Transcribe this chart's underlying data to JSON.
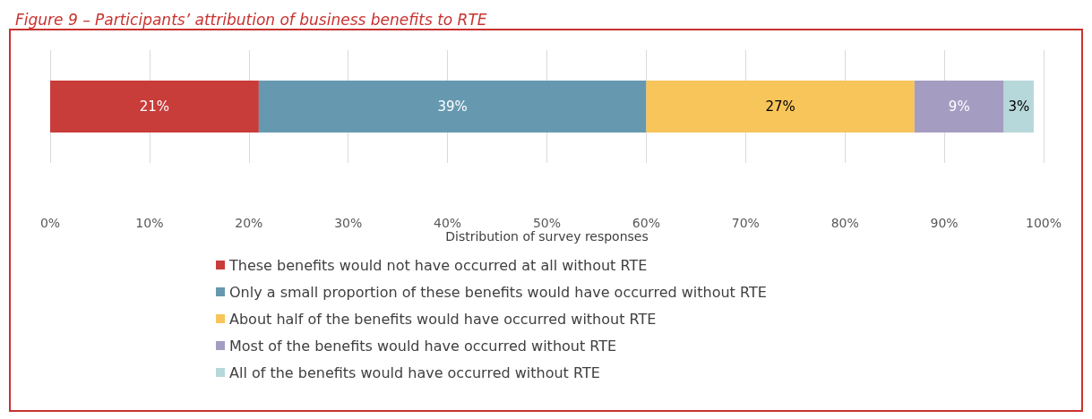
{
  "chart_data": {
    "type": "bar",
    "orientation": "horizontal",
    "stacked": true,
    "title": "Figure 9 – Participants’ attribution of business benefits to RTE",
    "xlabel": "Distribution of survey responses",
    "categories": [
      null
    ],
    "series": [
      {
        "name": "These benefits would not have occurred at all without RTE",
        "color": "#c83c3a",
        "values": [
          21
        ],
        "value_labels": [
          "21%"
        ]
      },
      {
        "name": "Only a small proportion of these benefits would have occurred without RTE",
        "color": "#6699b0",
        "values": [
          39
        ],
        "value_labels": [
          "39%"
        ]
      },
      {
        "name": "About half of the benefits would have occurred without RTE",
        "color": "#f7c55a",
        "values": [
          27
        ],
        "value_labels": [
          "27%"
        ]
      },
      {
        "name": "Most of the benefits would have occurred without RTE",
        "color": "#a59dc1",
        "values": [
          9
        ],
        "value_labels": [
          "9%"
        ]
      },
      {
        "name": "All of the benefits would have occurred without RTE",
        "color": "#b7d8da",
        "values": [
          3
        ],
        "value_labels": [
          "3%"
        ]
      }
    ],
    "xlim": [
      0,
      100
    ],
    "xticks": [
      {
        "value": 0,
        "label": "0%"
      },
      {
        "value": 10,
        "label": "10%"
      },
      {
        "value": 20,
        "label": "20%"
      },
      {
        "value": 30,
        "label": "30%"
      },
      {
        "value": 40,
        "label": "40%"
      },
      {
        "value": 50,
        "label": "50%"
      },
      {
        "value": 60,
        "label": "60%"
      },
      {
        "value": 70,
        "label": "70%"
      },
      {
        "value": 80,
        "label": "80%"
      },
      {
        "value": 90,
        "label": "90%"
      },
      {
        "value": 100,
        "label": "100%"
      }
    ],
    "grid": "x",
    "legend": "bottom"
  }
}
